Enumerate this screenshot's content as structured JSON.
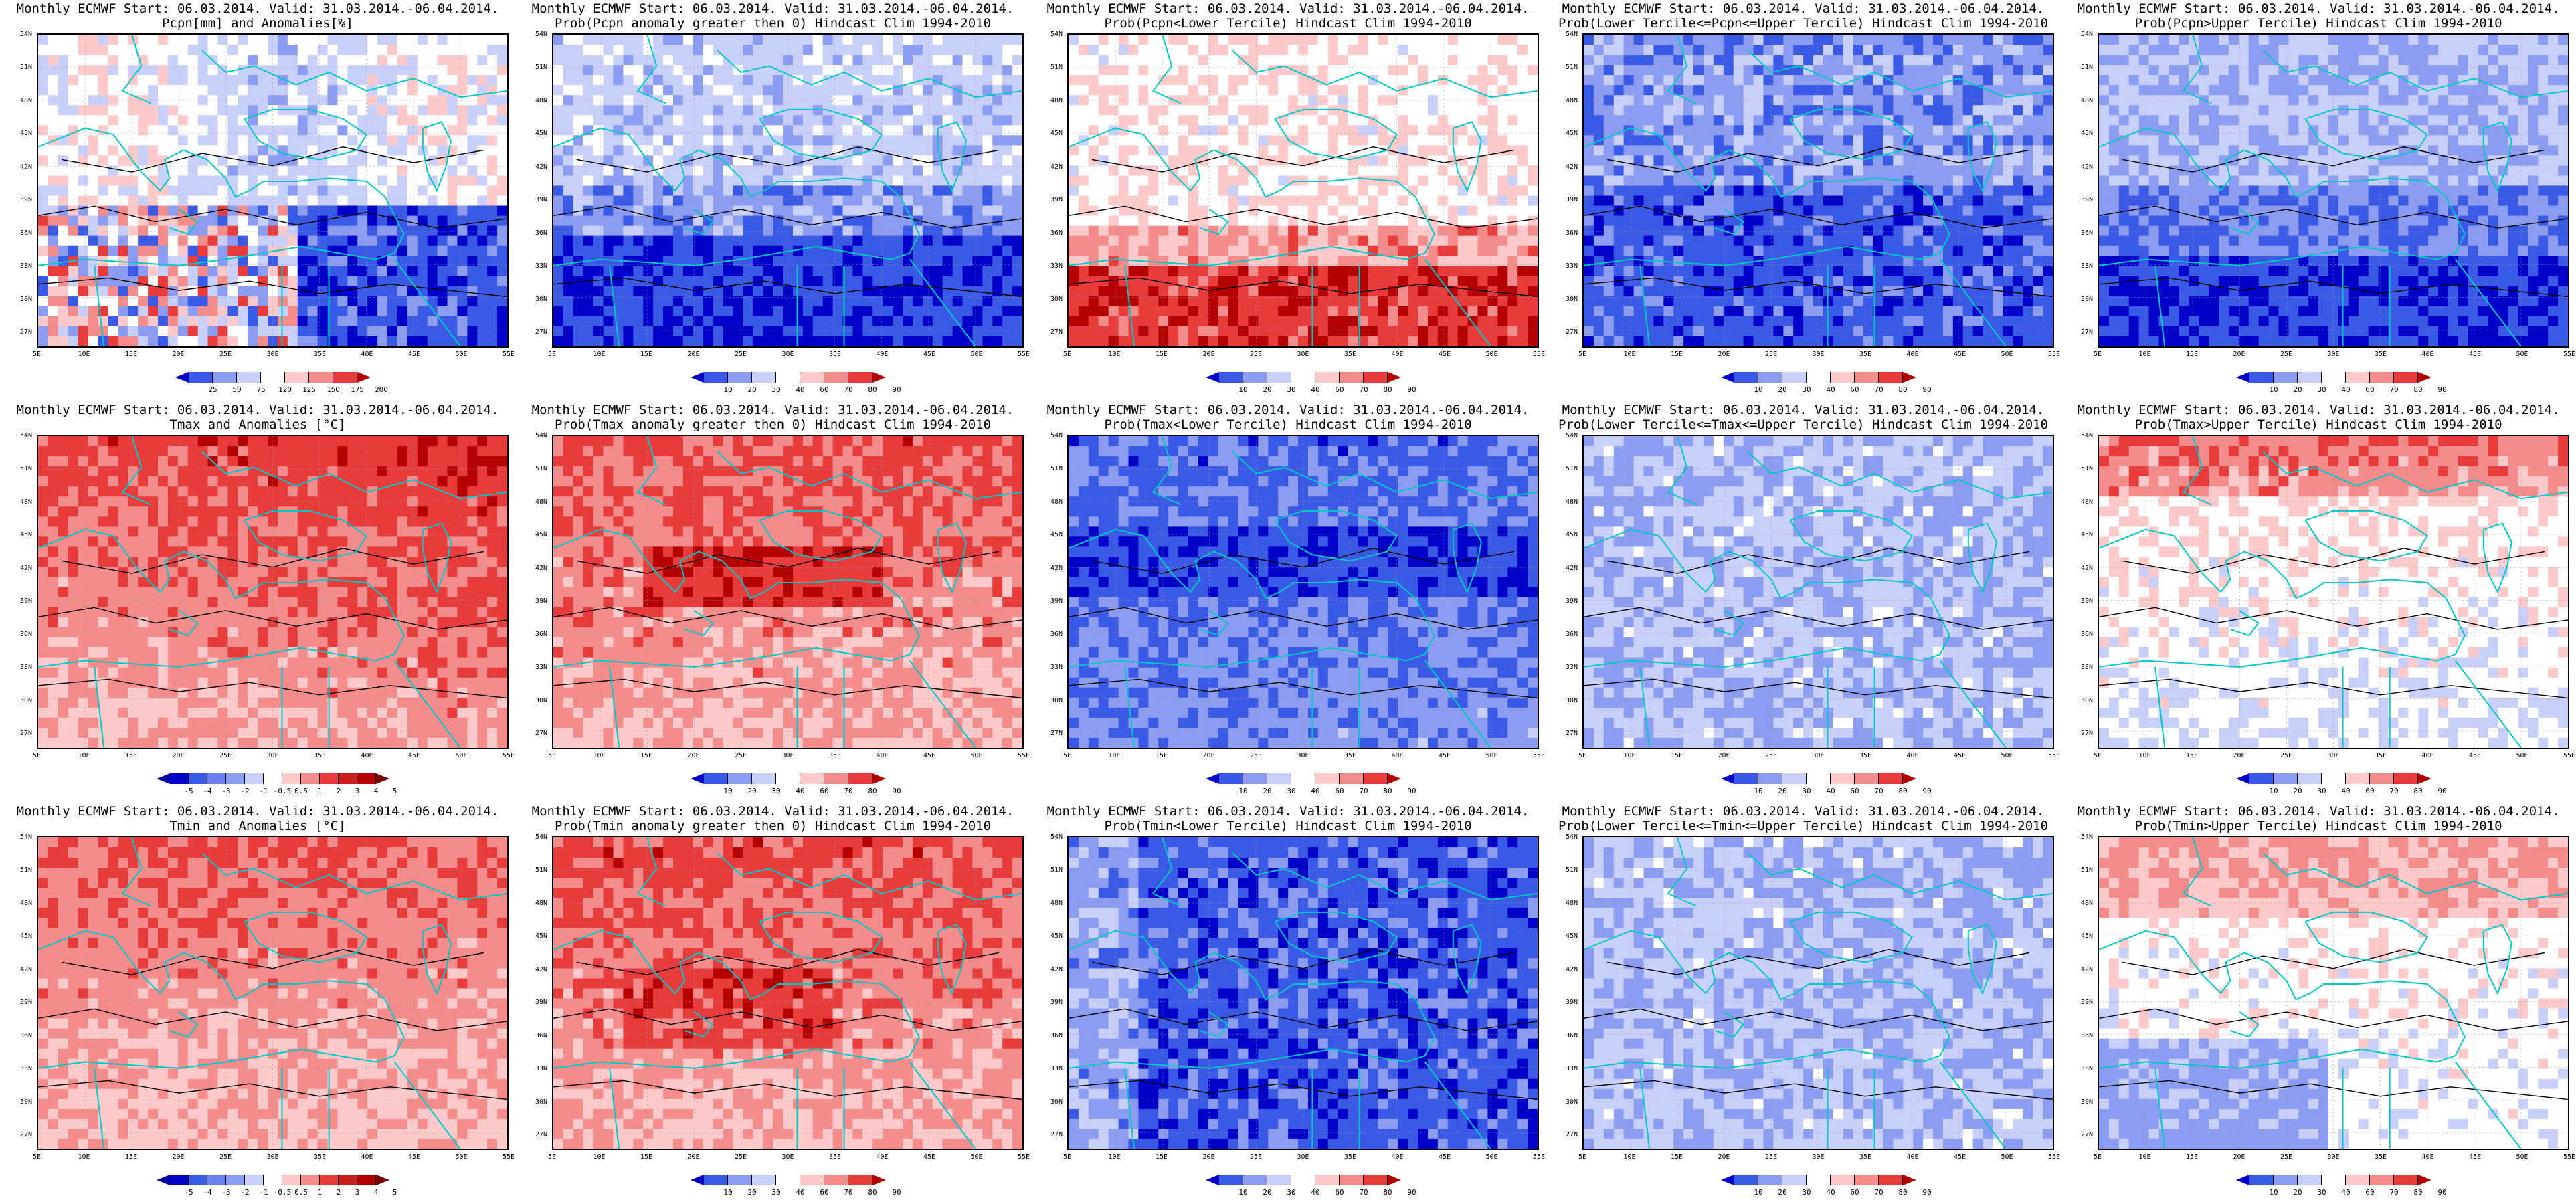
{
  "title_line1": "Monthly ECMWF Start: 06.03.2014. Valid: 31.03.2014.-06.04.2014.",
  "lat_labels": [
    "54N",
    "51N",
    "48N",
    "45N",
    "42N",
    "39N",
    "36N",
    "33N",
    "30N",
    "27N"
  ],
  "lon_labels": [
    "5E",
    "10E",
    "15E",
    "20E",
    "25E",
    "30E",
    "35E",
    "40E",
    "45E",
    "50E",
    "55E"
  ],
  "colors": {
    "land_line": "#00c8c8",
    "contour": "#000000",
    "blue_dark": "#0000c8",
    "blue_mid": "#3a5ae6",
    "blue_light": "#8c9cf0",
    "blue_pale": "#c8d0fa",
    "white": "#ffffff",
    "red_pale": "#fccaca",
    "red_light": "#f48c8c",
    "red_mid": "#e83c3c",
    "red_dark": "#b40000"
  },
  "rows": [
    {
      "variable": "precipitation",
      "panels": [
        {
          "title2": "Pcpn[mm] and Anomalies[%]",
          "scale": "pcpn_anom",
          "pattern": "pcpn_anom"
        },
        {
          "title2": "Prob(Pcpn anomaly greater then 0) Hindcast Clim 1994-2010",
          "scale": "prob_a",
          "pattern": "pcpn_prob_pos"
        },
        {
          "title2": "Prob(Pcpn<Lower Tercile) Hindcast Clim 1994-2010",
          "scale": "prob_b",
          "pattern": "pcpn_lower"
        },
        {
          "title2": "Prob(Lower Tercile<=Pcpn<=Upper Tercile) Hindcast Clim 1994-2010",
          "scale": "prob_b",
          "pattern": "pcpn_middle"
        },
        {
          "title2": "Prob(Pcpn>Upper Tercile) Hindcast Clim 1994-2010",
          "scale": "prob_a",
          "pattern": "pcpn_upper"
        }
      ]
    },
    {
      "variable": "tmax",
      "panels": [
        {
          "title2": "Tmax and Anomalies [°C]",
          "scale": "temp_anom",
          "pattern": "tmax_anom"
        },
        {
          "title2": "Prob(Tmax anomaly greater then 0) Hindcast Clim 1994-2010",
          "scale": "prob_a",
          "pattern": "tmax_prob_pos"
        },
        {
          "title2": "Prob(Tmax<Lower Tercile) Hindcast Clim 1994-2010",
          "scale": "prob_b",
          "pattern": "tmax_lower"
        },
        {
          "title2": "Prob(Lower Tercile<=Tmax<=Upper Tercile) Hindcast Clim 1994-2010",
          "scale": "prob_b",
          "pattern": "tmax_middle"
        },
        {
          "title2": "Prob(Tmax>Upper Tercile) Hindcast Clim 1994-2010",
          "scale": "prob_a",
          "pattern": "tmax_upper"
        }
      ]
    },
    {
      "variable": "tmin",
      "panels": [
        {
          "title2": "Tmin and Anomalies [°C]",
          "scale": "temp_anom",
          "pattern": "tmin_anom"
        },
        {
          "title2": "Prob(Tmin anomaly greater then 0) Hindcast Clim 1994-2010",
          "scale": "prob_a",
          "pattern": "tmin_prob_pos"
        },
        {
          "title2": "Prob(Tmin<Lower Tercile) Hindcast Clim 1994-2010",
          "scale": "prob_b",
          "pattern": "tmin_lower"
        },
        {
          "title2": "Prob(Lower Tercile<=Tmin<=Upper Tercile) Hindcast Clim 1994-2010",
          "scale": "prob_b",
          "pattern": "tmin_middle"
        },
        {
          "title2": "Prob(Tmin>Upper Tercile) Hindcast Clim 1994-2010",
          "scale": "prob_a",
          "pattern": "tmin_upper"
        }
      ]
    }
  ],
  "scales": {
    "pcpn_anom": {
      "labels": [
        "25",
        "50",
        "75",
        "120",
        "125",
        "150",
        "175",
        "200"
      ],
      "colors": [
        "#0000c8",
        "#3a5ae6",
        "#8c9cf0",
        "#c8d0fa",
        "#ffffff",
        "#fccaca",
        "#f48c8c",
        "#e83c3c",
        "#b40000"
      ]
    },
    "prob_a": {
      "labels": [
        "10",
        "20",
        "30",
        "40",
        "60",
        "70",
        "80",
        "90"
      ],
      "colors": [
        "#0000c8",
        "#3a5ae6",
        "#8c9cf0",
        "#c8d0fa",
        "#ffffff",
        "#fccaca",
        "#f48c8c",
        "#e83c3c",
        "#b40000"
      ]
    },
    "prob_b": {
      "labels": [
        "10",
        "20",
        "30",
        "40",
        "60",
        "70",
        "80",
        "90"
      ],
      "colors": [
        "#0000c8",
        "#3a5ae6",
        "#8c9cf0",
        "#c8d0fa",
        "#ffffff",
        "#fccaca",
        "#f48c8c",
        "#e83c3c",
        "#b40000"
      ]
    },
    "temp_anom": {
      "labels": [
        "-5",
        "-4",
        "-3",
        "-2",
        "-1",
        "-0.5",
        "0.5",
        "1",
        "2",
        "3",
        "4",
        "5"
      ],
      "colors": [
        "#0000a0",
        "#0000c8",
        "#3a5ae6",
        "#6a80ee",
        "#8c9cf0",
        "#c8d0fa",
        "#ffffff",
        "#fccaca",
        "#f48c8c",
        "#e83c3c",
        "#c81e1e",
        "#b40000",
        "#780000"
      ]
    }
  }
}
